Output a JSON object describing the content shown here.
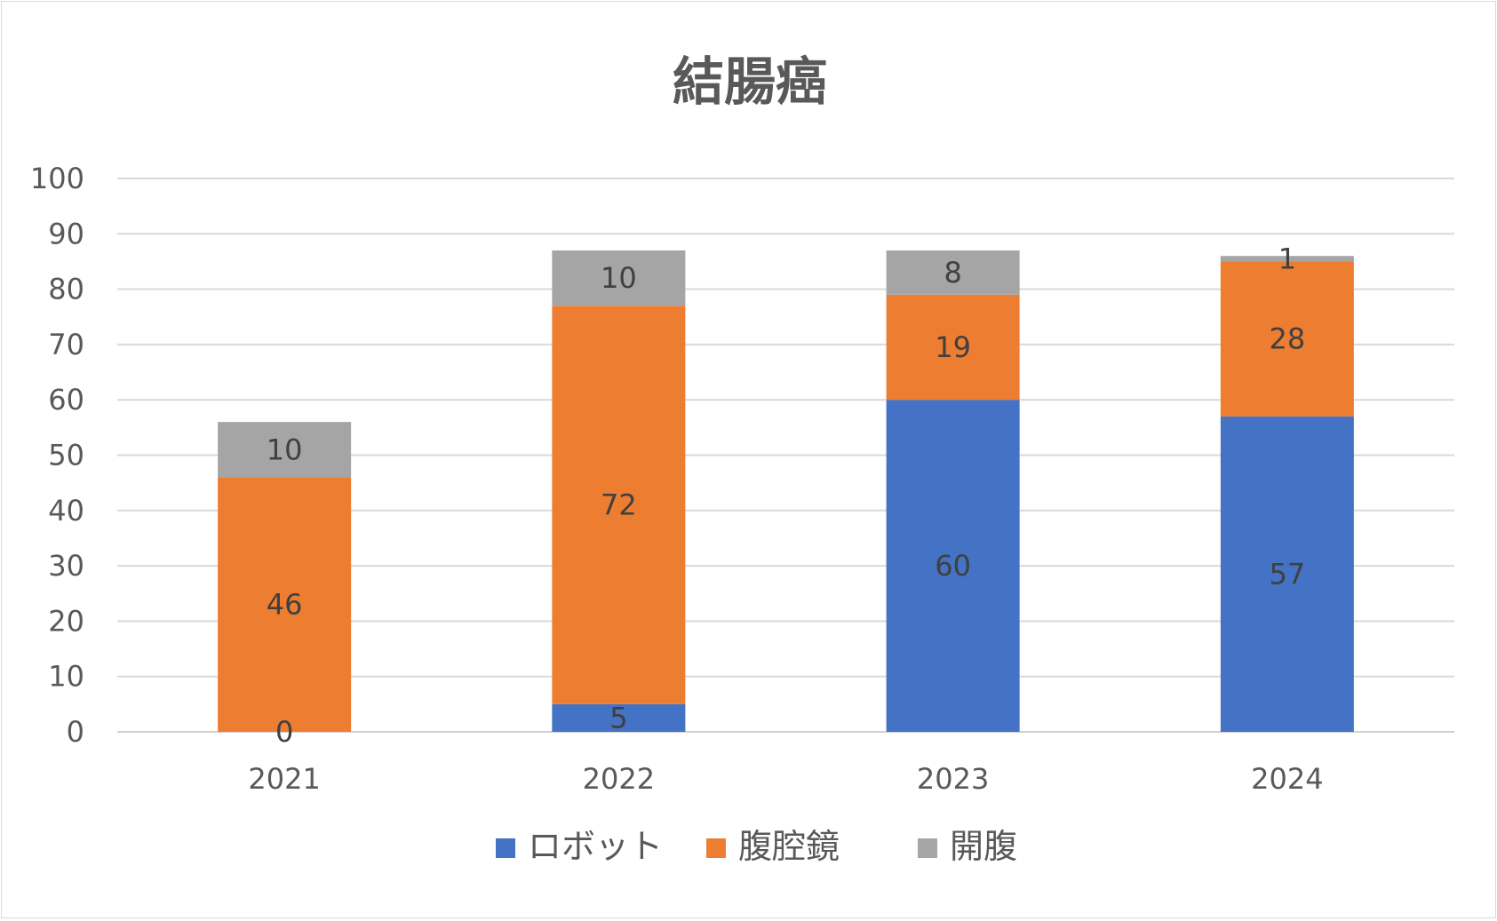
{
  "chart_data": {
    "type": "bar",
    "stacked": true,
    "title": "結腸癌",
    "xlabel": "",
    "ylabel": "",
    "categories": [
      "2021",
      "2022",
      "2023",
      "2024"
    ],
    "ylim": [
      0,
      100
    ],
    "yticks": [
      0,
      10,
      20,
      30,
      40,
      50,
      60,
      70,
      80,
      90,
      100
    ],
    "grid": true,
    "legend_position": "bottom",
    "series": [
      {
        "name": "ロボット",
        "color": "#4472C4",
        "values": [
          0,
          5,
          60,
          57
        ]
      },
      {
        "name": "腹腔鏡",
        "color": "#ED7D31",
        "values": [
          46,
          72,
          19,
          28
        ]
      },
      {
        "name": "開腹",
        "color": "#A5A5A5",
        "values": [
          10,
          10,
          8,
          1
        ]
      }
    ]
  }
}
